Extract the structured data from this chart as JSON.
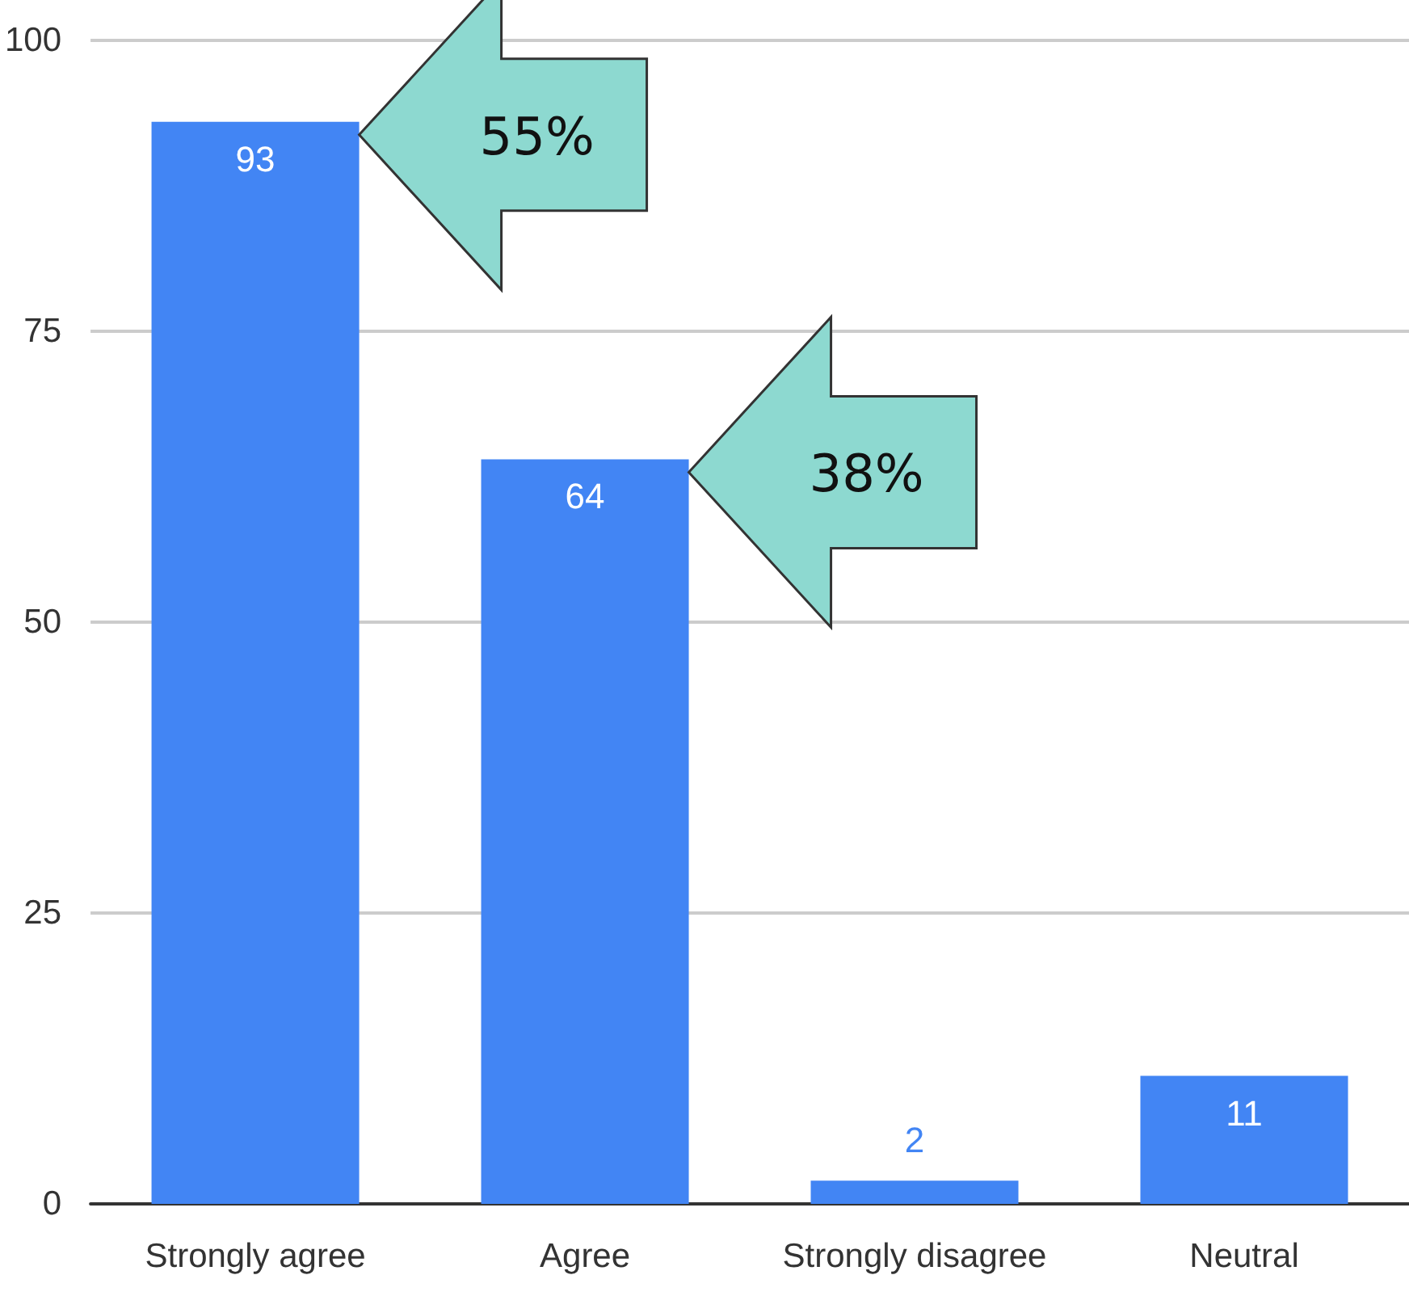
{
  "chart_data": {
    "type": "bar",
    "categories": [
      "Strongly agree",
      "Agree",
      "Strongly disagree",
      "Neutral"
    ],
    "values": [
      93,
      64,
      2,
      11
    ],
    "color": "#4285f4",
    "ylim": [
      0,
      100
    ],
    "yticks": [
      0,
      25,
      50,
      75,
      100
    ],
    "grid": "y",
    "data_labels": true,
    "annotations": [
      "55%",
      "38%"
    ]
  }
}
